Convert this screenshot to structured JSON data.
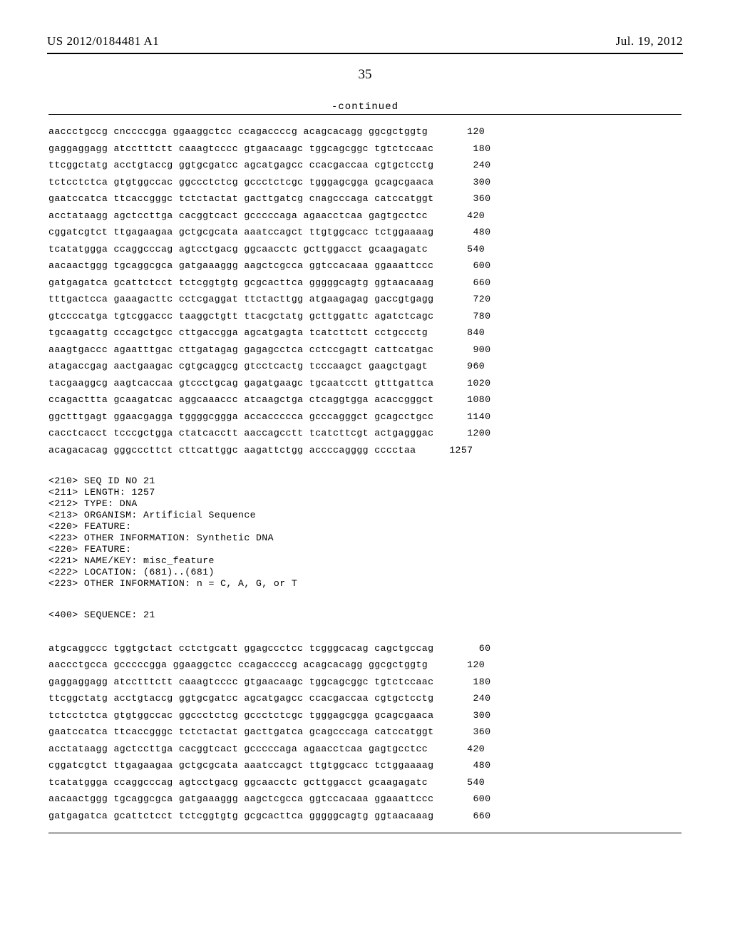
{
  "header": {
    "pubnum": "US 2012/0184481 A1",
    "pubdate": "Jul. 19, 2012"
  },
  "pagenum": "35",
  "continued_label": "-continued",
  "seq_top": [
    {
      "t": "aaccctgccg cnccccgga ggaaggctcc ccagaccccg acagcacagg ggcgctggtg",
      "n": "120"
    },
    {
      "t": "gaggaggagg atcctttctt caaagtcccc gtgaacaagc tggcagcggc tgtctccaac",
      "n": "180"
    },
    {
      "t": "ttcggctatg acctgtaccg ggtgcgatcc agcatgagcc ccacgaccaa cgtgctcctg",
      "n": "240"
    },
    {
      "t": "tctcctctca gtgtggccac ggccctctcg gccctctcgc tgggagcgga gcagcgaaca",
      "n": "300"
    },
    {
      "t": "gaatccatca ttcaccgggc tctctactat gacttgatcg cnagcccaga catccatggt",
      "n": "360"
    },
    {
      "t": "acctataagg agctccttga cacggtcact gcccccaga agaacctcaa gagtgcctcc",
      "n": "420"
    },
    {
      "t": "cggatcgtct ttgagaagaa gctgcgcata aaatccagct ttgtggcacc tctggaaaag",
      "n": "480"
    },
    {
      "t": "tcatatggga ccaggcccag agtcctgacg ggcaacctc gcttggacct gcaagagatc",
      "n": "540"
    },
    {
      "t": "aacaactggg tgcaggcgca gatgaaaggg aagctcgcca ggtccacaaa ggaaattccc",
      "n": "600"
    },
    {
      "t": "gatgagatca gcattctcct tctcggtgtg gcgcacttca gggggcagtg ggtaacaaag",
      "n": "660"
    },
    {
      "t": "tttgactcca gaaagacttc cctcgaggat ttctacttgg atgaagagag gaccgtgagg",
      "n": "720"
    },
    {
      "t": "gtccccatga tgtcggaccc taaggctgtt ttacgctatg gcttggattc agatctcagc",
      "n": "780"
    },
    {
      "t": "tgcaagattg cccagctgcc cttgaccgga agcatgagta tcatcttctt cctgccctg",
      "n": "840"
    },
    {
      "t": "aaagtgaccc agaatttgac cttgatagag gagagcctca cctccgagtt cattcatgac",
      "n": "900"
    },
    {
      "t": "atagaccgag aactgaagac cgtgcaggcg gtcctcactg tcccaagct gaagctgagt",
      "n": "960"
    },
    {
      "t": "tacgaaggcg aagtcaccaa gtccctgcag gagatgaagc tgcaatcctt gtttgattca",
      "n": "1020"
    },
    {
      "t": "ccagacttta gcaagatcac aggcaaaccc atcaagctga ctcaggtgga acaccgggct",
      "n": "1080"
    },
    {
      "t": "ggctttgagt ggaacgagga tggggcggga accaccccca gcccagggct gcagcctgcc",
      "n": "1140"
    },
    {
      "t": "cacctcacct tcccgctgga ctatcacctt aaccagcctt tcatcttcgt actgagggac",
      "n": "1200"
    },
    {
      "t": "acagacacag gggcccttct cttcattggc aagattctgg accccagggg cccctaa",
      "n": "1257"
    }
  ],
  "meta": [
    "<210> SEQ ID NO 21",
    "<211> LENGTH: 1257",
    "<212> TYPE: DNA",
    "<213> ORGANISM: Artificial Sequence",
    "<220> FEATURE:",
    "<223> OTHER INFORMATION: Synthetic DNA",
    "<220> FEATURE:",
    "<221> NAME/KEY: misc_feature",
    "<222> LOCATION: (681)..(681)",
    "<223> OTHER INFORMATION: n = C, A, G, or T"
  ],
  "seq_label": "<400> SEQUENCE: 21",
  "seq_bottom": [
    {
      "t": "atgcaggccc tggtgctact cctctgcatt ggagccctcc tcgggcacag cagctgccag",
      "n": "60"
    },
    {
      "t": "aaccctgcca gcccccgga ggaaggctcc ccagaccccg acagcacagg ggcgctggtg",
      "n": "120"
    },
    {
      "t": "gaggaggagg atcctttctt caaagtcccc gtgaacaagc tggcagcggc tgtctccaac",
      "n": "180"
    },
    {
      "t": "ttcggctatg acctgtaccg ggtgcgatcc agcatgagcc ccacgaccaa cgtgctcctg",
      "n": "240"
    },
    {
      "t": "tctcctctca gtgtggccac ggccctctcg gccctctcgc tgggagcgga gcagcgaaca",
      "n": "300"
    },
    {
      "t": "gaatccatca ttcaccgggc tctctactat gacttgatca gcagcccaga catccatggt",
      "n": "360"
    },
    {
      "t": "acctataagg agctccttga cacggtcact gcccccaga agaacctcaa gagtgcctcc",
      "n": "420"
    },
    {
      "t": "cggatcgtct ttgagaagaa gctgcgcata aaatccagct ttgtggcacc tctggaaaag",
      "n": "480"
    },
    {
      "t": "tcatatggga ccaggcccag agtcctgacg ggcaacctc gcttggacct gcaagagatc",
      "n": "540"
    },
    {
      "t": "aacaactggg tgcaggcgca gatgaaaggg aagctcgcca ggtccacaaa ggaaattccc",
      "n": "600"
    },
    {
      "t": "gatgagatca gcattctcct tctcggtgtg gcgcacttca gggggcagtg ggtaacaaag",
      "n": "660"
    }
  ]
}
